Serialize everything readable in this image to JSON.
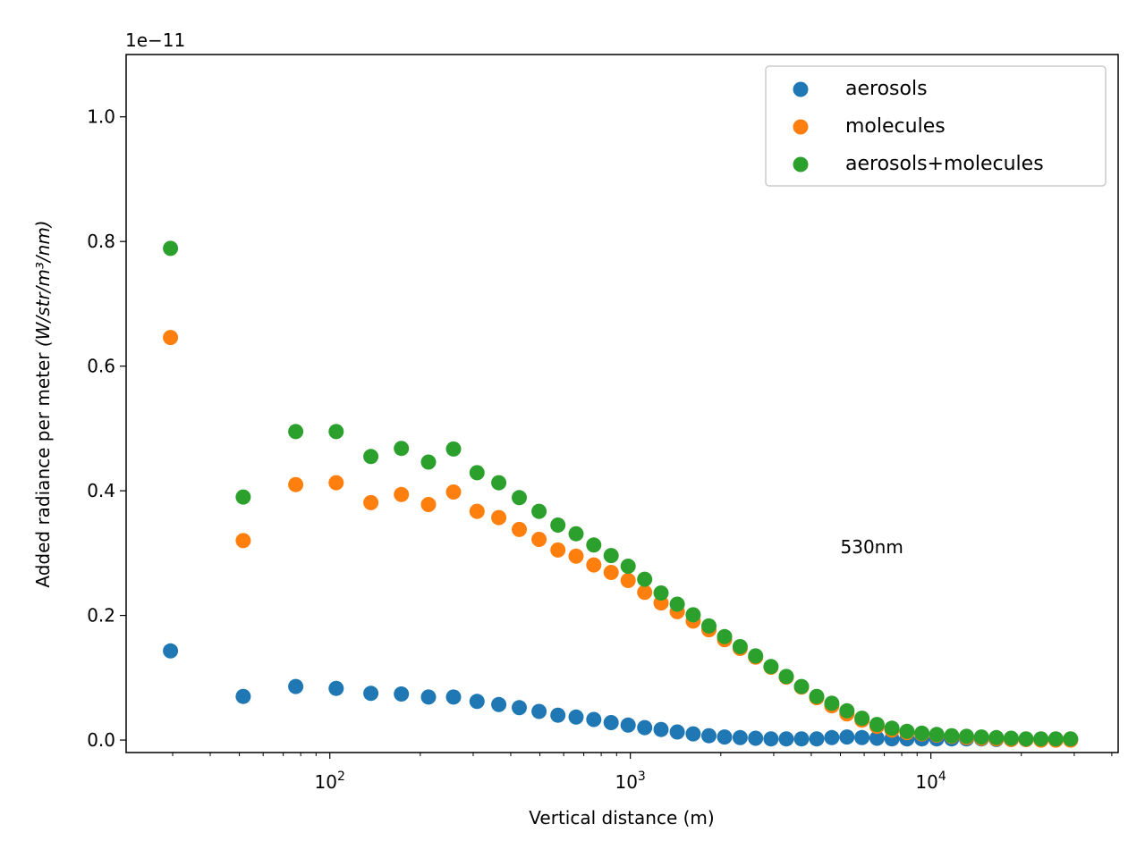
{
  "chart_data": {
    "type": "scatter",
    "title": "",
    "xlabel": "Vertical distance (m)",
    "ylabel": "Added radiance per meter",
    "ylabel_unit": "(W/str/m³/nm)",
    "y_offset_text": "1e−11",
    "x_scale": "log",
    "xlim": [
      21,
      42000
    ],
    "ylim": [
      -0.02,
      1.1
    ],
    "x_ticks": [
      {
        "value": 100,
        "label": "10",
        "exp": "2"
      },
      {
        "value": 1000,
        "label": "10",
        "exp": "3"
      },
      {
        "value": 10000,
        "label": "10",
        "exp": "4"
      }
    ],
    "y_ticks": [
      {
        "value": 0.0,
        "label": "0.0"
      },
      {
        "value": 0.2,
        "label": "0.2"
      },
      {
        "value": 0.4,
        "label": "0.4"
      },
      {
        "value": 0.6,
        "label": "0.6"
      },
      {
        "value": 0.8,
        "label": "0.8"
      },
      {
        "value": 1.0,
        "label": "1.0"
      }
    ],
    "grid": false,
    "legend_position": "top-right",
    "annotation": "530nm",
    "annotation_at": {
      "x": 5000,
      "y": 0.3
    },
    "x": [
      29.5,
      51.5,
      77,
      105,
      137,
      173,
      213,
      258,
      309,
      365,
      427,
      497,
      574,
      660,
      756,
      863,
      983,
      1116,
      1265,
      1432,
      1618,
      1826,
      2059,
      2320,
      2611,
      2938,
      3303,
      3712,
      4170,
      4683,
      5257,
      5899,
      6618,
      7423,
      8325,
      9334,
      10464,
      11730,
      13148,
      14736,
      16515,
      18508,
      20740,
      23240,
      26040,
      29175
    ],
    "series": [
      {
        "name": "aerosols",
        "color": "#1f77b4",
        "values": [
          0.143,
          0.07,
          0.086,
          0.083,
          0.075,
          0.074,
          0.069,
          0.069,
          0.062,
          0.057,
          0.052,
          0.046,
          0.04,
          0.037,
          0.033,
          0.028,
          0.024,
          0.02,
          0.017,
          0.013,
          0.01,
          0.007,
          0.005,
          0.004,
          0.003,
          0.002,
          0.002,
          0.002,
          0.002,
          0.004,
          0.005,
          0.004,
          0.003,
          0.002,
          0.002,
          0.002,
          0.002,
          0.002,
          0.002,
          0.002,
          0.001,
          0.001,
          0.001,
          0.001,
          0.001,
          0.001
        ]
      },
      {
        "name": "molecules",
        "color": "#ff7f0e",
        "values": [
          0.646,
          0.32,
          0.41,
          0.413,
          0.381,
          0.394,
          0.378,
          0.398,
          0.367,
          0.357,
          0.338,
          0.322,
          0.305,
          0.295,
          0.281,
          0.269,
          0.256,
          0.237,
          0.22,
          0.206,
          0.191,
          0.177,
          0.161,
          0.147,
          0.133,
          0.117,
          0.101,
          0.085,
          0.068,
          0.055,
          0.042,
          0.032,
          0.022,
          0.016,
          0.012,
          0.01,
          0.008,
          0.006,
          0.004,
          0.003,
          0.002,
          0.001,
          0.001,
          0.0,
          0.0,
          0.0
        ]
      },
      {
        "name": "aerosols+molecules",
        "color": "#2ca02c",
        "values": [
          0.789,
          0.39,
          0.495,
          0.495,
          0.455,
          0.468,
          0.446,
          0.467,
          0.429,
          0.413,
          0.389,
          0.367,
          0.345,
          0.331,
          0.313,
          0.296,
          0.279,
          0.258,
          0.236,
          0.218,
          0.201,
          0.183,
          0.166,
          0.15,
          0.135,
          0.118,
          0.102,
          0.086,
          0.07,
          0.059,
          0.047,
          0.035,
          0.025,
          0.019,
          0.014,
          0.011,
          0.009,
          0.007,
          0.006,
          0.005,
          0.004,
          0.003,
          0.002,
          0.002,
          0.002,
          0.002
        ]
      }
    ]
  }
}
